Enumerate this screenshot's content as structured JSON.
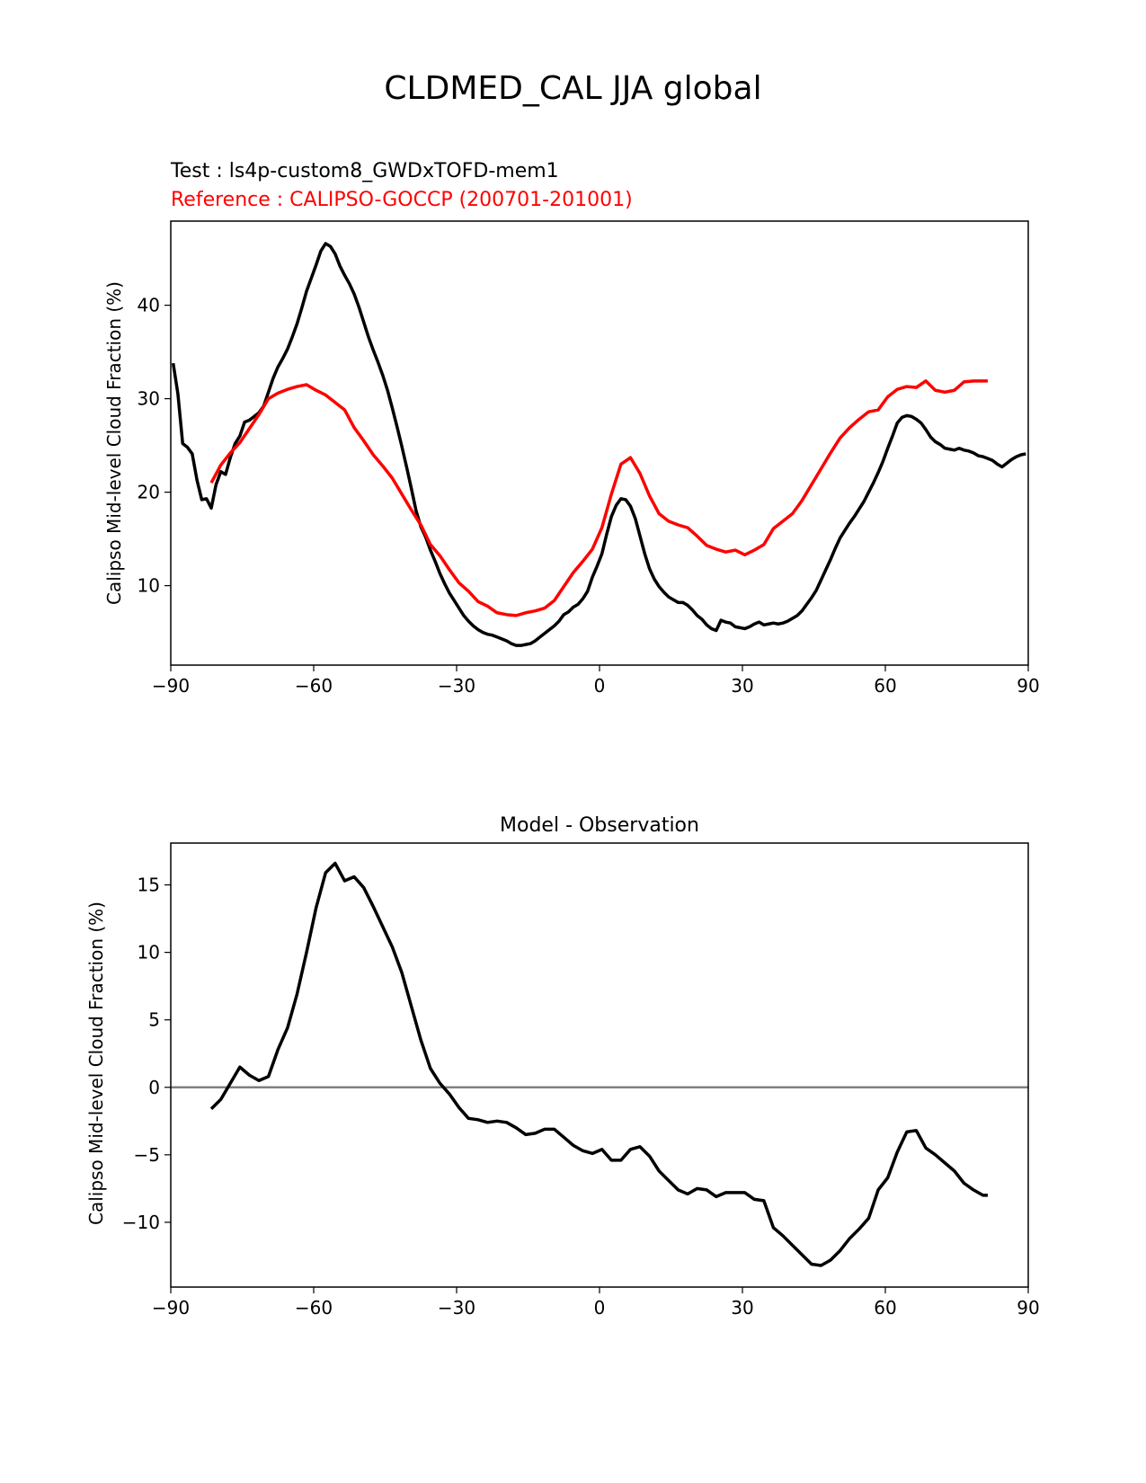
{
  "figure": {
    "title": "CLDMED_CAL JJA global"
  },
  "chart_data": [
    {
      "type": "line",
      "test_label": "Test : ls4p-custom8_GWDxTOFD-mem1",
      "reference_label": "Reference : CALIPSO-GOCCP (200701-201001)",
      "xlabel": "",
      "ylabel": "Calipso Mid-level Cloud Fraction (%)",
      "xlim": [
        -90,
        90
      ],
      "ylim": [
        1.5,
        49
      ],
      "xticks": [
        -90,
        -60,
        -30,
        0,
        30,
        60,
        90
      ],
      "xtick_labels": [
        "−90",
        "−60",
        "−30",
        "0",
        "30",
        "60",
        "90"
      ],
      "yticks": [
        10,
        20,
        30,
        40
      ],
      "ytick_labels": [
        "10",
        "20",
        "30",
        "40"
      ],
      "series": [
        {
          "name": "Test",
          "color": "#000000",
          "x": [
            -89.5,
            -88.5,
            -87.5,
            -86.5,
            -85.5,
            -84.5,
            -83.5,
            -82.5,
            -81.5,
            -80.5,
            -79.5,
            -78.5,
            -77.5,
            -76.5,
            -75.5,
            -74.5,
            -73.5,
            -72.5,
            -71.5,
            -70.5,
            -69.5,
            -68.5,
            -67.5,
            -66.5,
            -65.5,
            -64.5,
            -63.5,
            -62.5,
            -61.5,
            -60.5,
            -59.5,
            -58.5,
            -57.5,
            -56.5,
            -55.5,
            -54.5,
            -53.5,
            -52.5,
            -51.5,
            -50.5,
            -49.5,
            -48.5,
            -47.5,
            -46.5,
            -45.5,
            -44.5,
            -43.5,
            -42.5,
            -41.5,
            -40.5,
            -39.5,
            -38.5,
            -37.5,
            -36.5,
            -35.5,
            -34.5,
            -33.5,
            -32.5,
            -31.5,
            -30.5,
            -29.5,
            -28.5,
            -27.5,
            -26.5,
            -25.5,
            -24.5,
            -23.5,
            -22.5,
            -21.5,
            -20.5,
            -19.5,
            -18.5,
            -17.5,
            -16.5,
            -15.5,
            -14.5,
            -13.5,
            -12.5,
            -11.5,
            -10.5,
            -9.5,
            -8.5,
            -7.5,
            -6.5,
            -5.5,
            -4.5,
            -3.5,
            -2.5,
            -1.5,
            -0.5,
            0.5,
            1.5,
            2.5,
            3.5,
            4.5,
            5.5,
            6.5,
            7.5,
            8.5,
            9.5,
            10.5,
            11.5,
            12.5,
            13.5,
            14.5,
            15.5,
            16.5,
            17.5,
            18.5,
            19.5,
            20.5,
            21.5,
            22.5,
            23.5,
            24.5,
            25.5,
            26.5,
            27.5,
            28.5,
            29.5,
            30.5,
            31.5,
            32.5,
            33.5,
            34.5,
            35.5,
            36.5,
            37.5,
            38.5,
            39.5,
            40.5,
            41.5,
            42.5,
            43.5,
            44.5,
            45.5,
            46.5,
            47.5,
            48.5,
            49.5,
            50.5,
            51.5,
            52.5,
            53.5,
            54.5,
            55.5,
            56.5,
            57.5,
            58.5,
            59.5,
            60.5,
            61.5,
            62.5,
            63.5,
            64.5,
            65.5,
            66.5,
            67.5,
            68.5,
            69.5,
            70.5,
            71.5,
            72.5,
            73.5,
            74.5,
            75.5,
            76.5,
            77.5,
            78.5,
            79.5,
            80.5,
            81.5,
            82.5,
            83.5,
            84.5,
            85.5,
            86.5,
            87.5,
            88.5,
            89.5
          ],
          "values": [
            33.8,
            30.5,
            25.2,
            24.8,
            24.1,
            21.3,
            19.2,
            19.3,
            18.3,
            20.8,
            22.2,
            21.9,
            23.7,
            25.2,
            26.0,
            27.5,
            27.7,
            28.1,
            28.5,
            29.2,
            30.7,
            32.2,
            33.4,
            34.3,
            35.3,
            36.6,
            38.0,
            39.7,
            41.5,
            42.9,
            44.3,
            45.8,
            46.6,
            46.3,
            45.5,
            44.2,
            43.2,
            42.3,
            41.2,
            39.8,
            38.2,
            36.6,
            35.2,
            33.9,
            32.5,
            30.9,
            29.0,
            27.0,
            24.9,
            22.7,
            20.4,
            18.0,
            16.3,
            15.2,
            13.8,
            12.6,
            11.3,
            10.2,
            9.2,
            8.4,
            7.6,
            6.8,
            6.2,
            5.7,
            5.3,
            5.0,
            4.8,
            4.7,
            4.5,
            4.3,
            4.1,
            3.8,
            3.6,
            3.6,
            3.7,
            3.8,
            4.1,
            4.5,
            4.9,
            5.3,
            5.7,
            6.2,
            6.9,
            7.2,
            7.7,
            8.0,
            8.6,
            9.4,
            10.9,
            12.1,
            13.4,
            15.5,
            17.4,
            18.6,
            19.3,
            19.2,
            18.5,
            17.2,
            15.3,
            13.4,
            11.8,
            10.7,
            9.9,
            9.3,
            8.8,
            8.5,
            8.2,
            8.2,
            7.9,
            7.4,
            6.8,
            6.4,
            5.8,
            5.4,
            5.2,
            6.3,
            6.1,
            6.0,
            5.6,
            5.5,
            5.4,
            5.6,
            5.9,
            6.1,
            5.8,
            5.9,
            6.0,
            5.9,
            6.0,
            6.2,
            6.5,
            6.8,
            7.3,
            8.0,
            8.7,
            9.5,
            10.6,
            11.7,
            12.8,
            14.0,
            15.1,
            15.9,
            16.7,
            17.4,
            18.2,
            19.0,
            20.0,
            21.0,
            22.1,
            23.3,
            24.7,
            26.0,
            27.4,
            28.0,
            28.2,
            28.1,
            27.8,
            27.4,
            26.7,
            25.9,
            25.4,
            25.1,
            24.7,
            24.6,
            24.5,
            24.7,
            24.5,
            24.4,
            24.2,
            23.9,
            23.8,
            23.6,
            23.4,
            23.0,
            22.7,
            23.1,
            23.5,
            23.8,
            24.0,
            24.1
          ]
        },
        {
          "name": "Reference",
          "color": "#ff0000",
          "x": [
            -81.5,
            -79.5,
            -77.5,
            -75.5,
            -73.5,
            -71.5,
            -69.5,
            -67.5,
            -65.5,
            -63.5,
            -61.5,
            -59.5,
            -57.5,
            -55.5,
            -53.5,
            -51.5,
            -49.5,
            -47.5,
            -45.5,
            -43.5,
            -41.5,
            -39.5,
            -37.5,
            -35.5,
            -33.5,
            -31.5,
            -29.5,
            -27.5,
            -25.5,
            -23.5,
            -21.5,
            -19.5,
            -17.5,
            -15.5,
            -13.5,
            -11.5,
            -9.5,
            -7.5,
            -5.5,
            -3.5,
            -1.5,
            0.5,
            2.5,
            4.5,
            6.5,
            8.5,
            10.5,
            12.5,
            14.5,
            16.5,
            18.5,
            20.5,
            22.5,
            24.5,
            26.5,
            28.5,
            30.5,
            32.5,
            34.5,
            36.5,
            38.5,
            40.5,
            42.5,
            44.5,
            46.5,
            48.5,
            50.5,
            52.5,
            54.5,
            56.5,
            58.5,
            60.5,
            62.5,
            64.5,
            66.5,
            68.5,
            70.5,
            72.5,
            74.5,
            76.5,
            78.5,
            80.5,
            81.5
          ],
          "values": [
            21.0,
            22.9,
            24.2,
            25.3,
            26.8,
            28.3,
            30.0,
            30.6,
            31.0,
            31.3,
            31.5,
            30.9,
            30.4,
            29.6,
            28.8,
            26.9,
            25.5,
            24.0,
            22.8,
            21.5,
            19.8,
            18.1,
            16.5,
            14.4,
            13.2,
            11.7,
            10.3,
            9.4,
            8.3,
            7.8,
            7.1,
            6.9,
            6.8,
            7.1,
            7.3,
            7.6,
            8.4,
            9.9,
            11.4,
            12.6,
            13.9,
            16.2,
            19.8,
            23.0,
            23.7,
            22.0,
            19.6,
            17.7,
            16.9,
            16.5,
            16.2,
            15.3,
            14.3,
            13.9,
            13.6,
            13.8,
            13.3,
            13.8,
            14.4,
            16.1,
            16.9,
            17.7,
            19.1,
            20.8,
            22.5,
            24.2,
            25.8,
            26.9,
            27.8,
            28.6,
            28.8,
            30.2,
            31.0,
            31.3,
            31.2,
            31.9,
            30.9,
            30.7,
            30.9,
            31.8,
            31.9,
            31.9,
            31.9
          ]
        }
      ]
    },
    {
      "type": "line",
      "title": "Model - Observation",
      "xlabel": "",
      "ylabel": "Calipso Mid-level Cloud Fraction (%)",
      "xlim": [
        -90,
        90
      ],
      "ylim": [
        -14.8,
        18.1
      ],
      "xticks": [
        -90,
        -60,
        -30,
        0,
        30,
        60,
        90
      ],
      "xtick_labels": [
        "−90",
        "−60",
        "−30",
        "0",
        "30",
        "60",
        "90"
      ],
      "yticks": [
        -10,
        -5,
        0,
        5,
        10,
        15
      ],
      "ytick_labels": [
        "−10",
        "−5",
        "0",
        "5",
        "10",
        "15"
      ],
      "zero_line_color": "#808080",
      "series": [
        {
          "name": "Model - Observation",
          "color": "#000000",
          "x": [
            -81.5,
            -79.5,
            -77.5,
            -75.5,
            -73.5,
            -71.5,
            -69.5,
            -67.5,
            -65.5,
            -63.5,
            -61.5,
            -59.5,
            -57.5,
            -55.5,
            -53.5,
            -51.5,
            -49.5,
            -47.5,
            -45.5,
            -43.5,
            -41.5,
            -39.5,
            -37.5,
            -35.5,
            -33.5,
            -31.5,
            -29.5,
            -27.5,
            -25.5,
            -23.5,
            -21.5,
            -19.5,
            -17.5,
            -15.5,
            -13.5,
            -11.5,
            -9.5,
            -7.5,
            -5.5,
            -3.5,
            -1.5,
            0.5,
            2.5,
            4.5,
            6.5,
            8.5,
            10.5,
            12.5,
            14.5,
            16.5,
            18.5,
            20.5,
            22.5,
            24.5,
            26.5,
            28.5,
            30.5,
            32.5,
            34.5,
            36.5,
            38.5,
            40.5,
            42.5,
            44.5,
            46.5,
            48.5,
            50.5,
            52.5,
            54.5,
            56.5,
            58.5,
            60.5,
            62.5,
            64.5,
            66.5,
            68.5,
            70.5,
            72.5,
            74.5,
            76.5,
            78.5,
            80.5,
            81.5
          ],
          "values": [
            -1.6,
            -0.9,
            0.3,
            1.5,
            0.9,
            0.5,
            0.8,
            2.8,
            4.4,
            6.9,
            10.0,
            13.3,
            15.9,
            16.6,
            15.3,
            15.6,
            14.8,
            13.4,
            11.9,
            10.4,
            8.5,
            6.0,
            3.5,
            1.4,
            0.3,
            -0.5,
            -1.5,
            -2.3,
            -2.4,
            -2.6,
            -2.5,
            -2.6,
            -3.0,
            -3.5,
            -3.4,
            -3.1,
            -3.1,
            -3.7,
            -4.3,
            -4.7,
            -4.9,
            -4.6,
            -5.4,
            -5.4,
            -4.6,
            -4.4,
            -5.1,
            -6.2,
            -6.9,
            -7.6,
            -7.9,
            -7.5,
            -7.6,
            -8.1,
            -7.8,
            -7.8,
            -7.8,
            -8.3,
            -8.4,
            -10.4,
            -11.0,
            -11.7,
            -12.4,
            -13.1,
            -13.2,
            -12.8,
            -12.1,
            -11.2,
            -10.5,
            -9.7,
            -7.6,
            -6.7,
            -4.8,
            -3.3,
            -3.2,
            -4.5,
            -5.0,
            -5.6,
            -6.2,
            -7.1,
            -7.6,
            -8.0,
            -8.0
          ]
        }
      ]
    }
  ]
}
